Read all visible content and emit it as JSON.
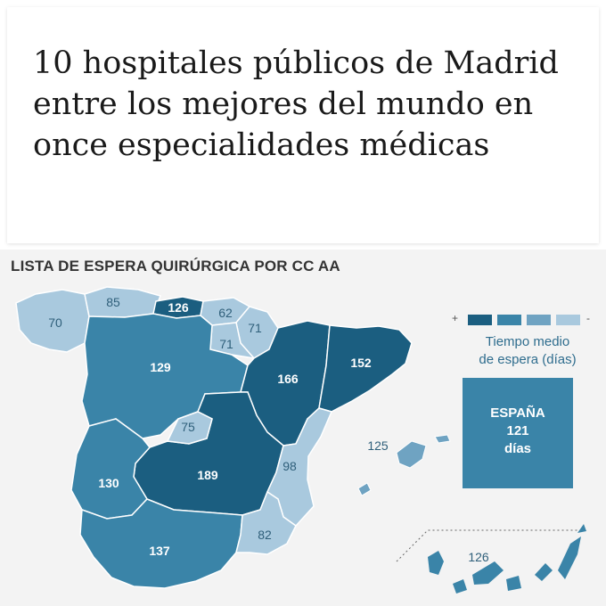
{
  "headline": "10 hospitales públicos de Madrid entre los mejores del mundo en once especialidades médicas",
  "map": {
    "title": "LISTA DE ESPERA QUIRÚRGICA POR CC AA",
    "regions": [
      {
        "name": "Galicia",
        "value": "70"
      },
      {
        "name": "Asturias",
        "value": "85"
      },
      {
        "name": "Cantabria",
        "value": "126"
      },
      {
        "name": "País Vasco",
        "value": "62"
      },
      {
        "name": "Navarra",
        "value": "71"
      },
      {
        "name": "La Rioja",
        "value": "71"
      },
      {
        "name": "Castilla y León",
        "value": "129"
      },
      {
        "name": "Aragón",
        "value": "166"
      },
      {
        "name": "Cataluña",
        "value": "152"
      },
      {
        "name": "Madrid",
        "value": "75"
      },
      {
        "name": "Castilla-La Mancha",
        "value": "189"
      },
      {
        "name": "Comunidad Valenciana",
        "value": "98"
      },
      {
        "name": "Extremadura",
        "value": "130"
      },
      {
        "name": "Islas Baleares",
        "value": "125"
      },
      {
        "name": "Andalucía",
        "value": "137"
      },
      {
        "name": "Región de Murcia",
        "value": "82"
      },
      {
        "name": "Canarias",
        "value": "126"
      }
    ],
    "legend": {
      "plus": "+",
      "minus": "-",
      "colors": [
        "#1b5e80",
        "#3a84a8",
        "#6fa3c2",
        "#a9c9de"
      ],
      "caption_line1": "Tiempo medio",
      "caption_line2": "de espera (días)"
    },
    "spain_total": {
      "label": "ESPAÑA",
      "value": "121",
      "unit": "días"
    }
  }
}
